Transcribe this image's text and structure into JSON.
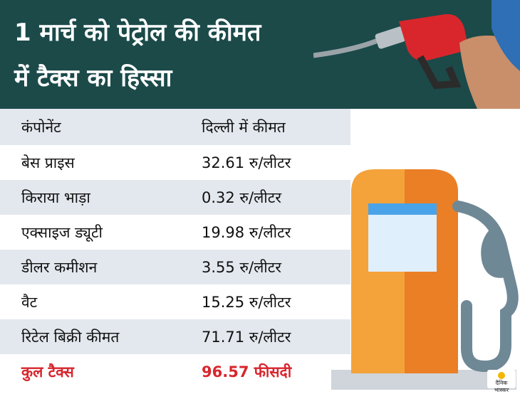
{
  "header": {
    "title_line1": "1 मार्च को पेट्रोल की कीमत",
    "title_line2": "में टैक्स का हिस्सा"
  },
  "table": {
    "columns": [
      "कंपोनेंट",
      "दिल्ली में कीमत"
    ],
    "rows": [
      {
        "component": "बेस प्राइस",
        "price": "32.61 रु/लीटर"
      },
      {
        "component": "किराया भाड़ा",
        "price": "0.32 रु/लीटर"
      },
      {
        "component": "एक्साइज ड्यूटी",
        "price": "19.98 रु/लीटर"
      },
      {
        "component": "डीलर कमीशन",
        "price": "3.55 रु/लीटर"
      },
      {
        "component": "वैट",
        "price": "15.25 रु/लीटर"
      },
      {
        "component": "रिटेल बिक्री कीमत",
        "price": "71.71 रु/लीटर"
      }
    ],
    "total": {
      "component": "कुल टैक्स",
      "price": "96.57 फीसदी"
    }
  },
  "logo": {
    "text_line1": "दैनिक",
    "text_line2": "भास्कर"
  },
  "colors": {
    "header_bg": "#1b4a49",
    "total_text": "#d7262d",
    "pump_orange": "#f08a2a",
    "row_shade": "#e3e8ee"
  },
  "icons": [
    "fuel-nozzle-icon",
    "fuel-pump-icon"
  ]
}
